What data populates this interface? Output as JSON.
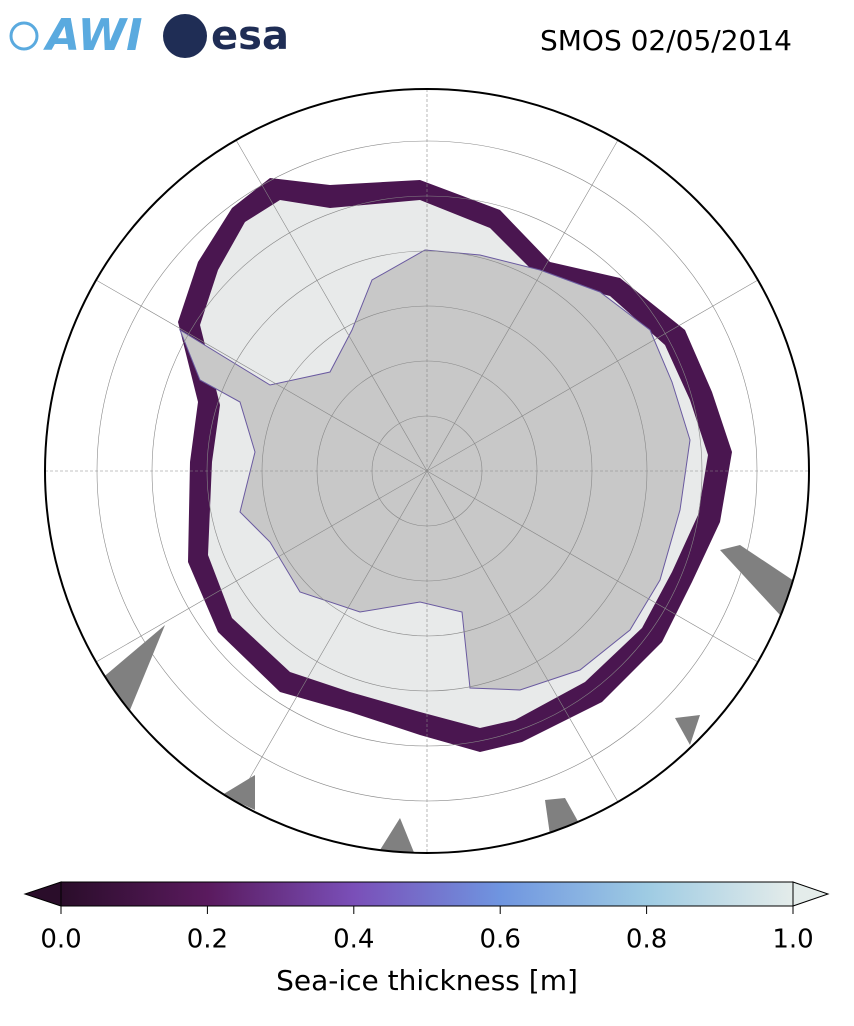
{
  "header": {
    "logos": [
      "AWI",
      "esa"
    ],
    "title": "SMOS 02/05/2014"
  },
  "colorbar": {
    "label": "Sea-ice thickness [m]",
    "lim": [
      0,
      1
    ],
    "ticks": [
      {
        "value": 0,
        "label": "0.0"
      },
      {
        "value": 0.2,
        "label": "0.2"
      },
      {
        "value": 0.4,
        "label": "0.4"
      },
      {
        "value": 0.6,
        "label": "0.6"
      },
      {
        "value": 0.8,
        "label": "0.8"
      },
      {
        "value": 1,
        "label": "1.0"
      }
    ],
    "colors": [
      "#2a0d2a",
      "#5a1a5e",
      "#7a4fb8",
      "#6f95e0",
      "#9ecbe3",
      "#e4ecea"
    ]
  }
}
